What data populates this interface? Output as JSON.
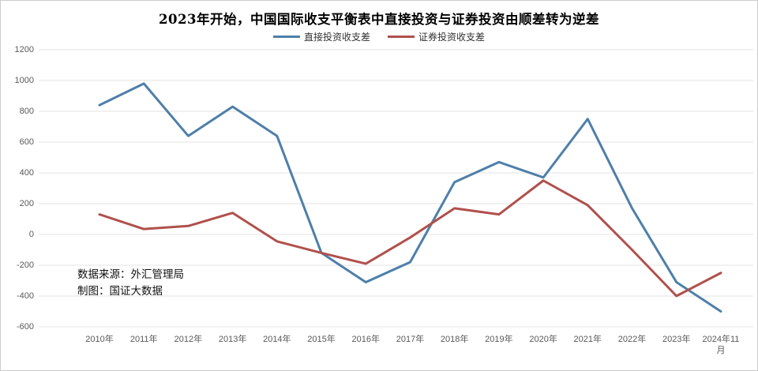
{
  "title": "2023年开始，中国国际收支平衡表中直接投资与证券投资由顺差转为逆差",
  "source_note": {
    "line1": "数据来源：外汇管理局",
    "line2": "制图：国证大数据"
  },
  "chart_data": {
    "type": "line",
    "title": "2023年开始，中国国际收支平衡表中直接投资与证券投资由顺差转为逆差",
    "categories": [
      "2010年",
      "2011年",
      "2012年",
      "2013年",
      "2014年",
      "2015年",
      "2016年",
      "2017年",
      "2018年",
      "2019年",
      "2020年",
      "2021年",
      "2022年",
      "2023年",
      "2024年11月"
    ],
    "series": [
      {
        "name": "直接投资收支差",
        "color": "#4e7fa9",
        "values": [
          840,
          980,
          640,
          830,
          640,
          -120,
          -310,
          -180,
          340,
          470,
          370,
          750,
          170,
          -310,
          -500
        ]
      },
      {
        "name": "证券投资收支差",
        "color": "#b0504c",
        "values": [
          130,
          35,
          55,
          140,
          -45,
          -120,
          -190,
          -20,
          170,
          130,
          350,
          190,
          -100,
          -400,
          -250
        ]
      }
    ],
    "xlabel": "",
    "ylabel": "",
    "ylim": [
      -600,
      1200
    ],
    "yticks": [
      1200,
      1000,
      800,
      600,
      400,
      200,
      0,
      -200,
      -400,
      -600
    ],
    "grid": true,
    "gridline_color": "#e3e3e3",
    "tick_color": "#595959",
    "legend_position": "top"
  }
}
